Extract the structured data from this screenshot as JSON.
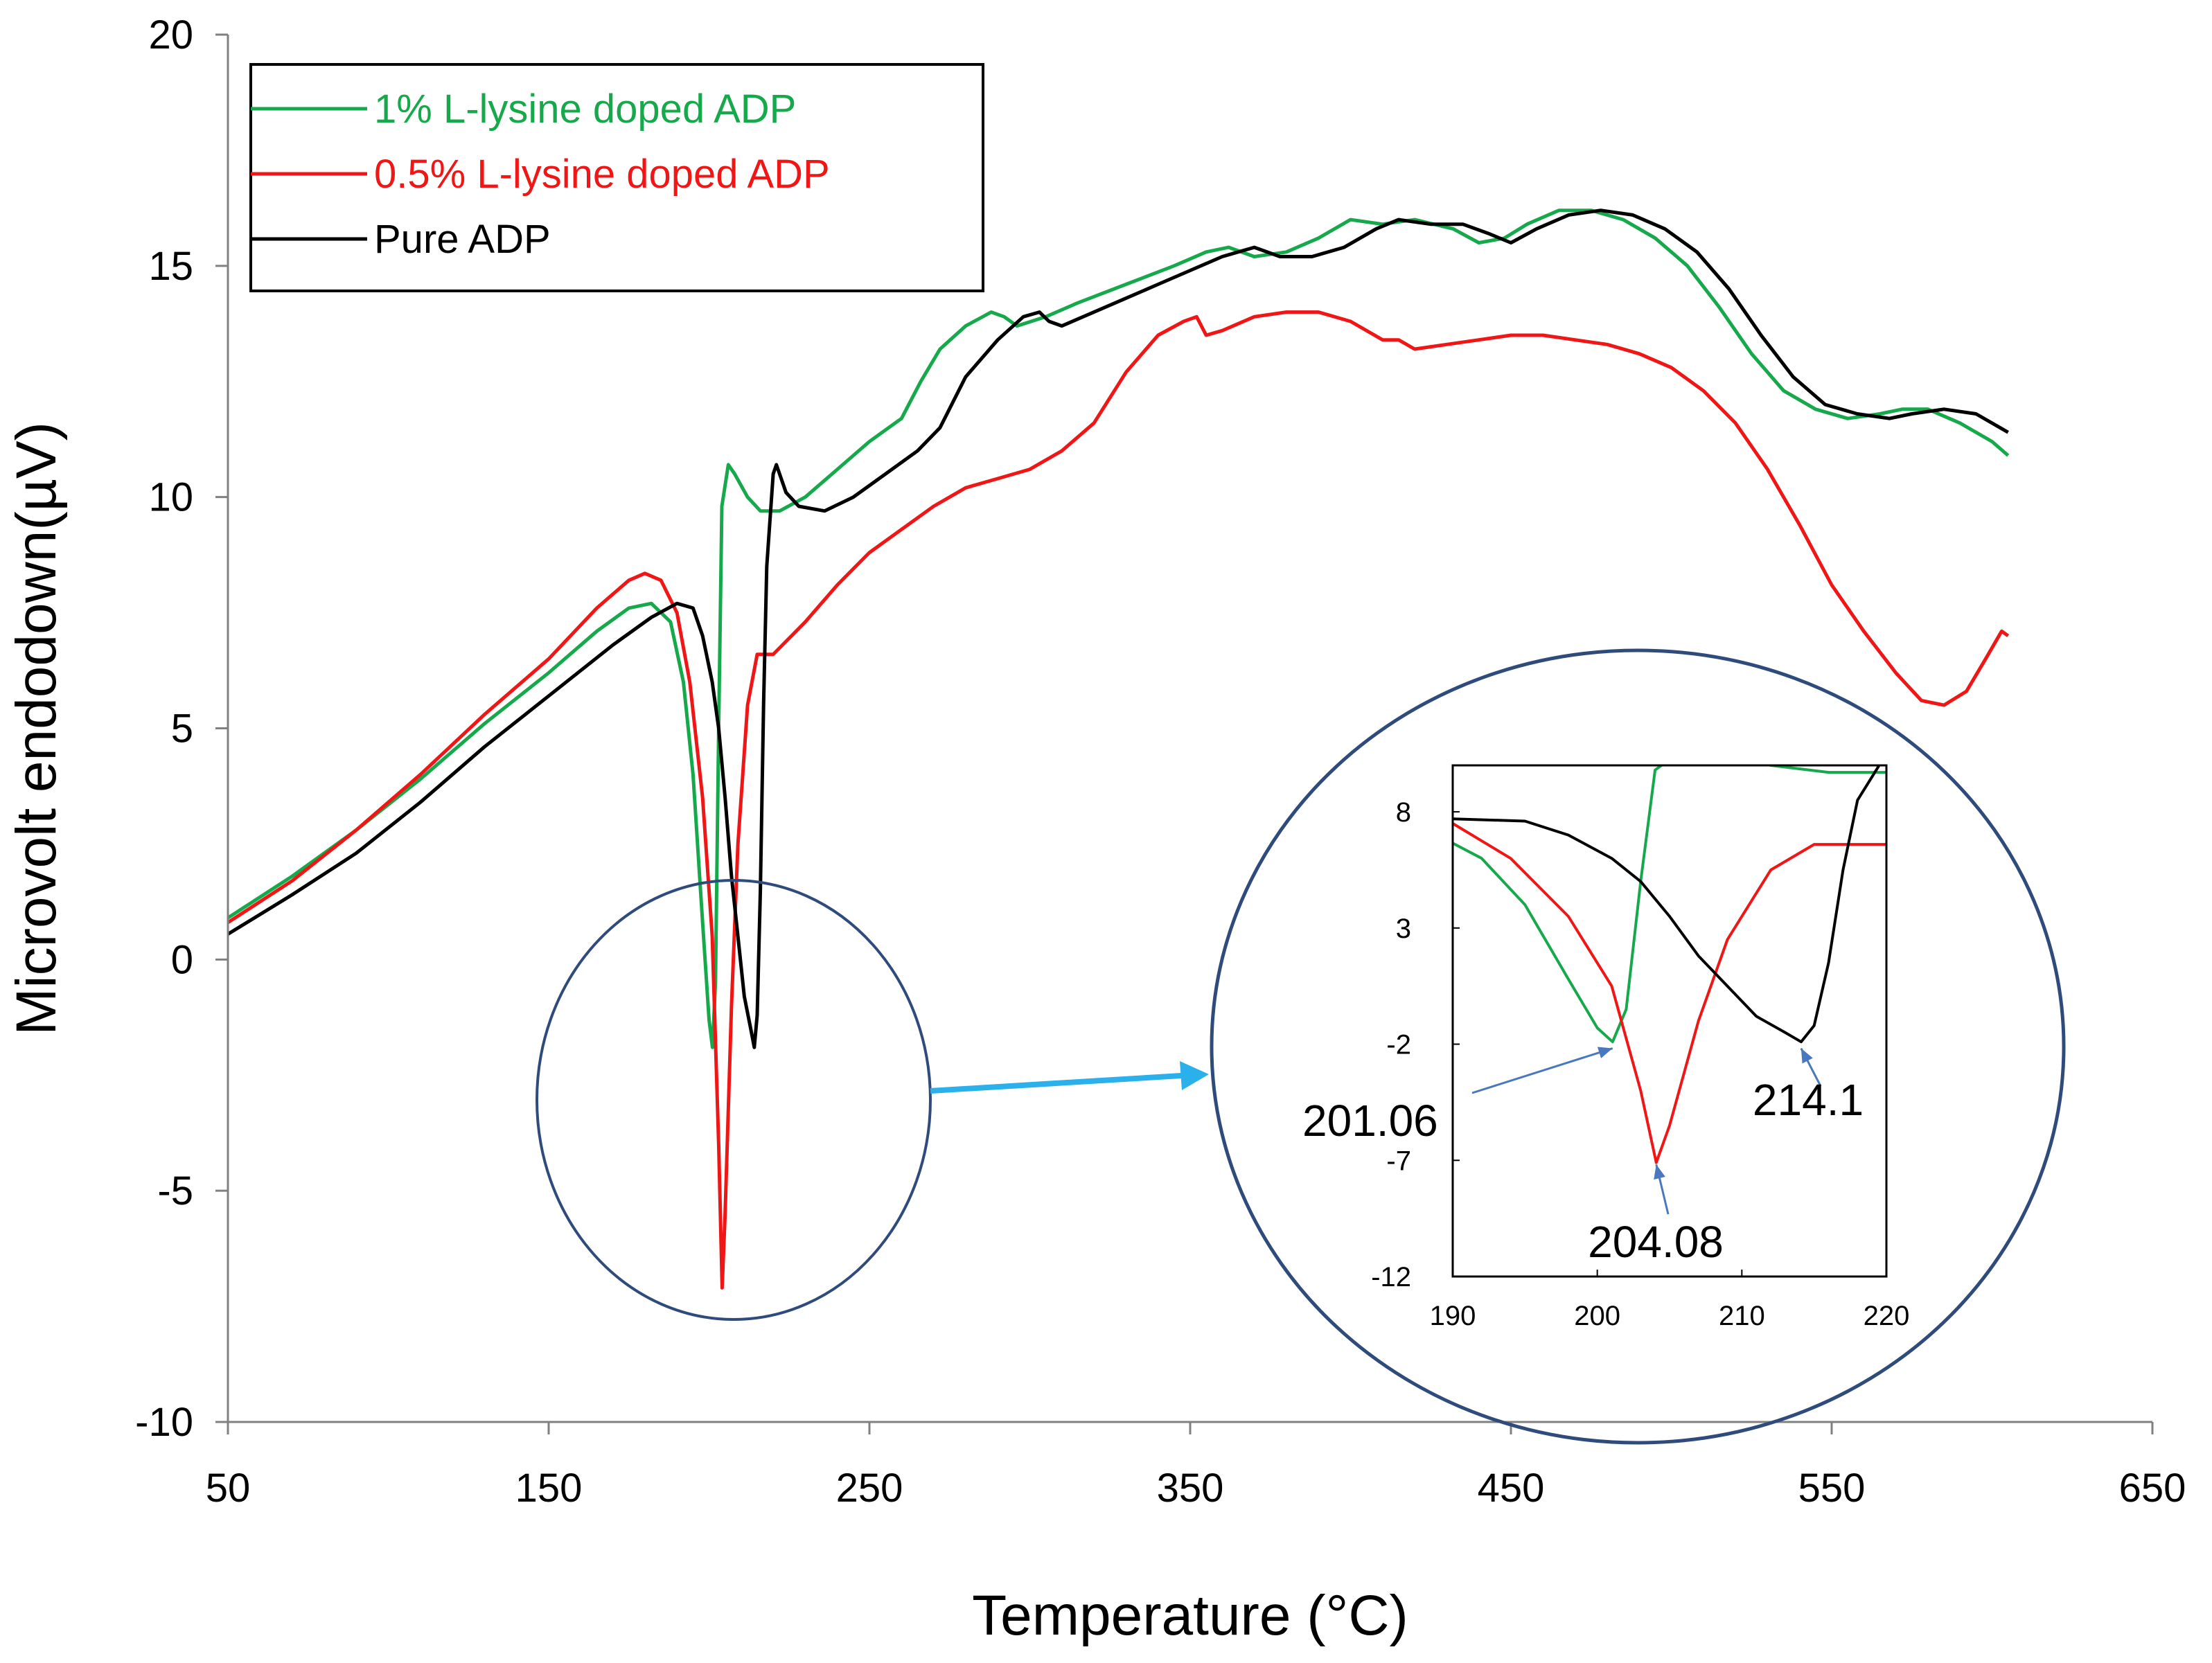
{
  "chart_data": {
    "type": "line",
    "title": "",
    "xlabel": "Temperature (°C)",
    "ylabel": "Microvolt endodown(µV)",
    "xlim": [
      50,
      650
    ],
    "ylim": [
      -10,
      20
    ],
    "xticks": [
      50,
      150,
      250,
      350,
      450,
      550,
      650
    ],
    "yticks": [
      -10,
      -5,
      0,
      5,
      10,
      15,
      20
    ],
    "grid": false,
    "legend_position": "top-left",
    "series": [
      {
        "name": "1% L-lysine doped ADP",
        "color": "#16a94b",
        "points": [
          [
            50,
            0.9
          ],
          [
            70,
            1.8
          ],
          [
            90,
            2.8
          ],
          [
            110,
            3.9
          ],
          [
            130,
            5.1
          ],
          [
            150,
            6.2
          ],
          [
            165,
            7.1
          ],
          [
            175,
            7.6
          ],
          [
            182,
            7.7
          ],
          [
            188,
            7.3
          ],
          [
            192,
            6.0
          ],
          [
            195,
            4.0
          ],
          [
            198,
            0.8
          ],
          [
            200,
            -1.3
          ],
          [
            201.06,
            -1.9
          ],
          [
            202,
            -0.5
          ],
          [
            203,
            5.0
          ],
          [
            204,
            9.8
          ],
          [
            206,
            10.7
          ],
          [
            208,
            10.5
          ],
          [
            212,
            10.0
          ],
          [
            216,
            9.7
          ],
          [
            222,
            9.7
          ],
          [
            230,
            10.0
          ],
          [
            240,
            10.6
          ],
          [
            250,
            11.2
          ],
          [
            260,
            11.7
          ],
          [
            266,
            12.5
          ],
          [
            272,
            13.2
          ],
          [
            280,
            13.7
          ],
          [
            288,
            14.0
          ],
          [
            292,
            13.9
          ],
          [
            296,
            13.7
          ],
          [
            305,
            13.9
          ],
          [
            315,
            14.2
          ],
          [
            330,
            14.6
          ],
          [
            345,
            15.0
          ],
          [
            355,
            15.3
          ],
          [
            362,
            15.4
          ],
          [
            370,
            15.2
          ],
          [
            380,
            15.3
          ],
          [
            390,
            15.6
          ],
          [
            400,
            16.0
          ],
          [
            410,
            15.9
          ],
          [
            420,
            16.0
          ],
          [
            432,
            15.8
          ],
          [
            440,
            15.5
          ],
          [
            448,
            15.6
          ],
          [
            455,
            15.9
          ],
          [
            465,
            16.2
          ],
          [
            475,
            16.2
          ],
          [
            485,
            16.0
          ],
          [
            495,
            15.6
          ],
          [
            505,
            15.0
          ],
          [
            515,
            14.1
          ],
          [
            525,
            13.1
          ],
          [
            535,
            12.3
          ],
          [
            545,
            11.9
          ],
          [
            555,
            11.7
          ],
          [
            565,
            11.8
          ],
          [
            572,
            11.9
          ],
          [
            580,
            11.9
          ],
          [
            590,
            11.6
          ],
          [
            600,
            11.2
          ],
          [
            605,
            10.9
          ]
        ]
      },
      {
        "name": "0.5% L-lysine doped ADP",
        "color": "#f01616",
        "points": [
          [
            50,
            0.8
          ],
          [
            70,
            1.7
          ],
          [
            90,
            2.8
          ],
          [
            110,
            4.0
          ],
          [
            130,
            5.3
          ],
          [
            150,
            6.5
          ],
          [
            165,
            7.6
          ],
          [
            175,
            8.2
          ],
          [
            180,
            8.35
          ],
          [
            185,
            8.2
          ],
          [
            190,
            7.5
          ],
          [
            194,
            6.0
          ],
          [
            198,
            3.5
          ],
          [
            201,
            0.5
          ],
          [
            203,
            -4.0
          ],
          [
            204.08,
            -7.1
          ],
          [
            205,
            -5.5
          ],
          [
            207,
            -1.0
          ],
          [
            209,
            2.5
          ],
          [
            212,
            5.5
          ],
          [
            215,
            6.6
          ],
          [
            220,
            6.6
          ],
          [
            230,
            7.3
          ],
          [
            240,
            8.1
          ],
          [
            250,
            8.8
          ],
          [
            260,
            9.3
          ],
          [
            270,
            9.8
          ],
          [
            280,
            10.2
          ],
          [
            290,
            10.4
          ],
          [
            300,
            10.6
          ],
          [
            310,
            11.0
          ],
          [
            320,
            11.6
          ],
          [
            330,
            12.7
          ],
          [
            340,
            13.5
          ],
          [
            348,
            13.8
          ],
          [
            352,
            13.9
          ],
          [
            355,
            13.5
          ],
          [
            360,
            13.6
          ],
          [
            370,
            13.9
          ],
          [
            380,
            14.0
          ],
          [
            390,
            14.0
          ],
          [
            400,
            13.8
          ],
          [
            410,
            13.4
          ],
          [
            415,
            13.4
          ],
          [
            420,
            13.2
          ],
          [
            430,
            13.3
          ],
          [
            440,
            13.4
          ],
          [
            450,
            13.5
          ],
          [
            460,
            13.5
          ],
          [
            470,
            13.4
          ],
          [
            480,
            13.3
          ],
          [
            490,
            13.1
          ],
          [
            500,
            12.8
          ],
          [
            510,
            12.3
          ],
          [
            520,
            11.6
          ],
          [
            530,
            10.6
          ],
          [
            540,
            9.4
          ],
          [
            550,
            8.1
          ],
          [
            560,
            7.1
          ],
          [
            570,
            6.2
          ],
          [
            578,
            5.6
          ],
          [
            585,
            5.5
          ],
          [
            592,
            5.8
          ],
          [
            598,
            6.5
          ],
          [
            603,
            7.1
          ],
          [
            605,
            7.0
          ]
        ]
      },
      {
        "name": "Pure ADP",
        "color": "#000000",
        "points": [
          [
            50,
            0.55
          ],
          [
            70,
            1.4
          ],
          [
            90,
            2.3
          ],
          [
            110,
            3.4
          ],
          [
            130,
            4.6
          ],
          [
            150,
            5.7
          ],
          [
            170,
            6.8
          ],
          [
            182,
            7.4
          ],
          [
            190,
            7.7
          ],
          [
            195,
            7.6
          ],
          [
            198,
            7.0
          ],
          [
            201,
            6.0
          ],
          [
            203,
            5.0
          ],
          [
            205,
            3.5
          ],
          [
            207,
            1.8
          ],
          [
            209,
            0.5
          ],
          [
            211,
            -0.8
          ],
          [
            213,
            -1.5
          ],
          [
            214.1,
            -1.9
          ],
          [
            215,
            -1.2
          ],
          [
            216,
            1.5
          ],
          [
            217,
            5.5
          ],
          [
            218,
            8.5
          ],
          [
            220,
            10.5
          ],
          [
            221,
            10.7
          ],
          [
            224,
            10.1
          ],
          [
            228,
            9.8
          ],
          [
            236,
            9.7
          ],
          [
            245,
            10.0
          ],
          [
            255,
            10.5
          ],
          [
            265,
            11.0
          ],
          [
            272,
            11.5
          ],
          [
            280,
            12.6
          ],
          [
            290,
            13.4
          ],
          [
            298,
            13.9
          ],
          [
            303,
            14.0
          ],
          [
            306,
            13.8
          ],
          [
            310,
            13.7
          ],
          [
            320,
            14.0
          ],
          [
            330,
            14.3
          ],
          [
            340,
            14.6
          ],
          [
            350,
            14.9
          ],
          [
            360,
            15.2
          ],
          [
            370,
            15.4
          ],
          [
            378,
            15.2
          ],
          [
            388,
            15.2
          ],
          [
            398,
            15.4
          ],
          [
            408,
            15.8
          ],
          [
            415,
            16.0
          ],
          [
            425,
            15.9
          ],
          [
            435,
            15.9
          ],
          [
            443,
            15.7
          ],
          [
            450,
            15.5
          ],
          [
            458,
            15.8
          ],
          [
            468,
            16.1
          ],
          [
            478,
            16.2
          ],
          [
            488,
            16.1
          ],
          [
            498,
            15.8
          ],
          [
            508,
            15.3
          ],
          [
            518,
            14.5
          ],
          [
            528,
            13.5
          ],
          [
            538,
            12.6
          ],
          [
            548,
            12.0
          ],
          [
            558,
            11.8
          ],
          [
            568,
            11.7
          ],
          [
            575,
            11.8
          ],
          [
            585,
            11.9
          ],
          [
            595,
            11.8
          ],
          [
            605,
            11.4
          ]
        ]
      }
    ],
    "inset": {
      "xlim": [
        190,
        220
      ],
      "ylim": [
        -12,
        10
      ],
      "xticks": [
        190,
        200,
        210,
        220
      ],
      "yticks": [
        8,
        3,
        -2,
        -7,
        -12
      ],
      "annotations": [
        {
          "label": "201.06",
          "x": 201.06,
          "y": -2.0
        },
        {
          "label": "204.08",
          "x": 204.08,
          "y": -7.0
        },
        {
          "label": "214.1",
          "x": 214.1,
          "y": -2.0
        }
      ]
    }
  }
}
